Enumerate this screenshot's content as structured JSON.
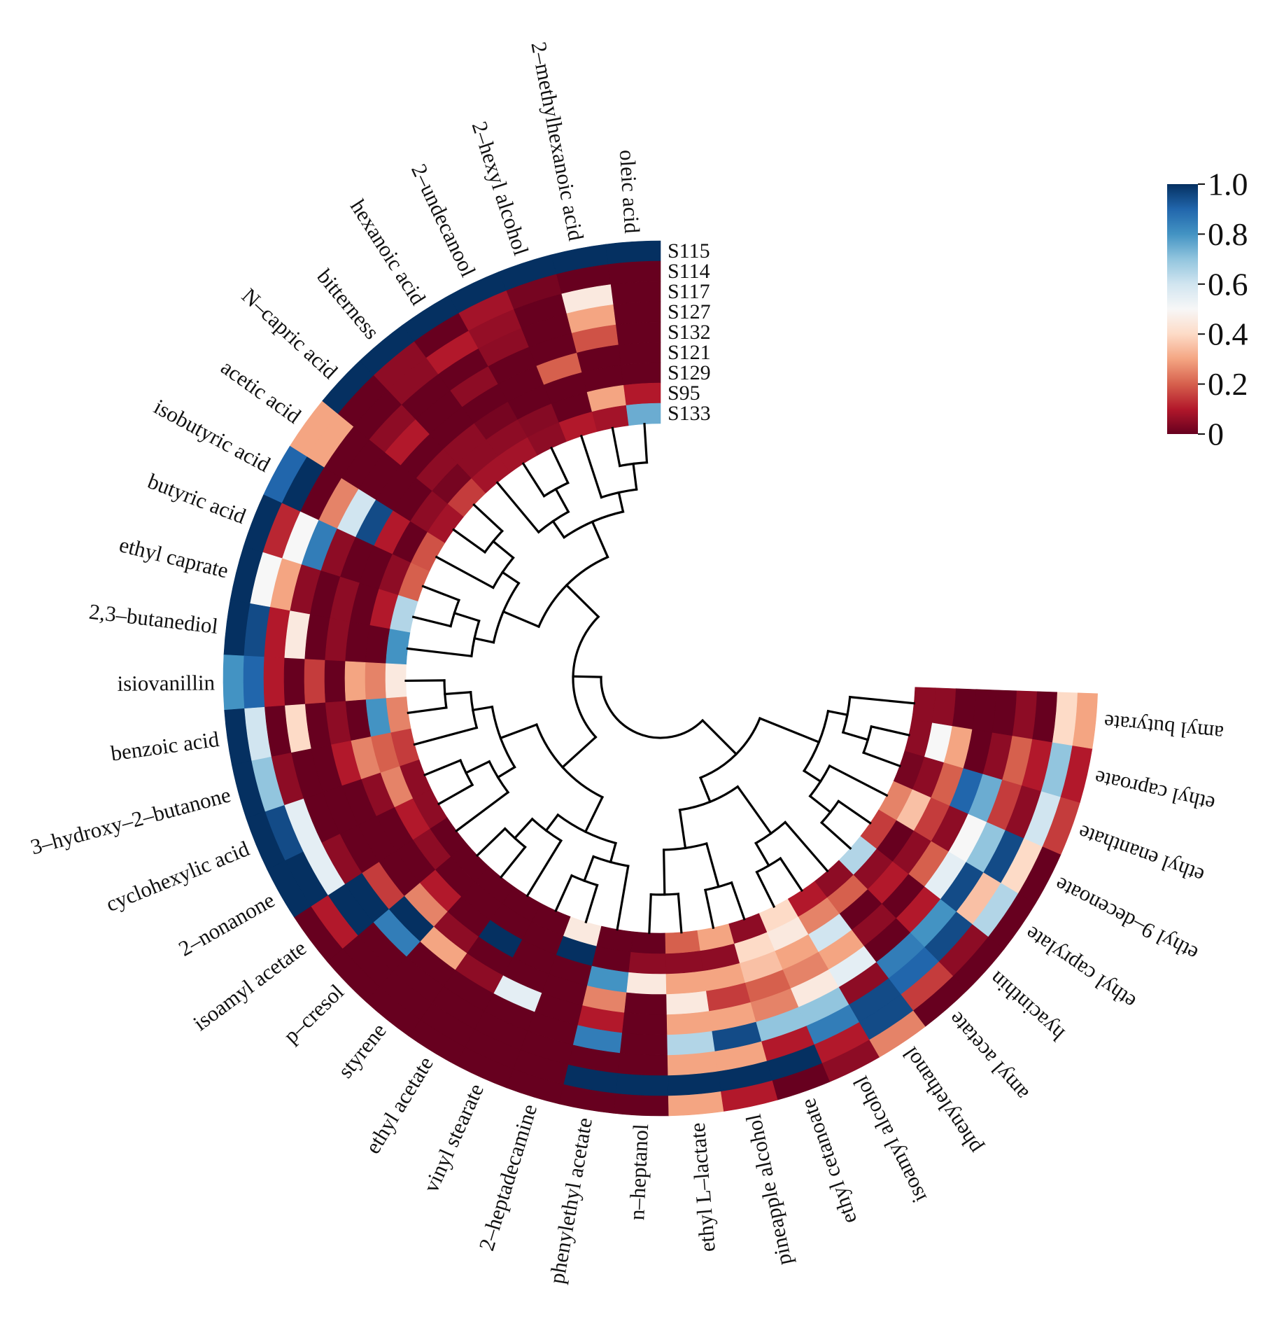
{
  "chart_data": {
    "type": "heatmap",
    "layout": "circular",
    "samples": [
      "S115",
      "S114",
      "S117",
      "S127",
      "S132",
      "S121",
      "S129",
      "S95",
      "S133"
    ],
    "features": [
      "oleic acid",
      "2–methylhexanoic acid",
      "2–hexyl alcohol",
      "2–undecanool",
      "hexanoic acid",
      "bitterness",
      "N–capric acid",
      "acetic acid",
      "isobutyric acid",
      "butyric acid",
      "ethyl caprate",
      "2,3–butanediol",
      "isiovanillin",
      "benzoic acid",
      "3–hydroxy–2–butanone",
      "cyclohexylic acid",
      "2–nonanone",
      "isoamyl acetate",
      "p–cresol",
      "styrene",
      "ethyl acetate",
      "vinyl stearate",
      "2–heptadecamine",
      "phenylethyl acetate",
      "n–heptanol",
      "ethyl L–lactate",
      "pineapple alcohol",
      "ethyl cetanoate",
      "isoamyl alcohol",
      "phenylethanol",
      "amyl acetate",
      "hyacinthin",
      "ethyl caprylate",
      "ethyl 9–decenoate",
      "ethyl enanthate",
      "ethyl caproate",
      "amyl butyrate"
    ],
    "values": [
      [
        1,
        0,
        0,
        0,
        0,
        0,
        0,
        0.1,
        0.75
      ],
      [
        1,
        0,
        0.45,
        0.3,
        0.18,
        0,
        0,
        0.3,
        0.08
      ],
      [
        1,
        0.02,
        0,
        0,
        0,
        0.2,
        0,
        0,
        0.1
      ],
      [
        1,
        0.08,
        0.06,
        0.05,
        0,
        0,
        0,
        0.04,
        0.05
      ],
      [
        1,
        0,
        0.1,
        0,
        0.05,
        0,
        0.02,
        0.05,
        0.08
      ],
      [
        1,
        0.05,
        0.05,
        0,
        0,
        0,
        0.05,
        0.05,
        0.08
      ],
      [
        1,
        0,
        0,
        0.05,
        0.1,
        0,
        0.05,
        0.02,
        0.15
      ],
      [
        0.3,
        0.3,
        0,
        0,
        0,
        0,
        0,
        0.05,
        0.08
      ],
      [
        0.9,
        1,
        0,
        0.25,
        0.6,
        0.95,
        0.1,
        0,
        0.18
      ],
      [
        1,
        0.12,
        0.5,
        0.85,
        0.05,
        0,
        0,
        0.05,
        0.2
      ],
      [
        1,
        0.5,
        0.3,
        0.05,
        0,
        0.05,
        0,
        0.1,
        0.65
      ],
      [
        1,
        0.95,
        0.1,
        0.45,
        0,
        0.05,
        0,
        0,
        0.8
      ],
      [
        0.8,
        0.9,
        0.1,
        0,
        0.15,
        0,
        0.3,
        0.25,
        0.45
      ],
      [
        1,
        0.6,
        0,
        0.4,
        0,
        0.05,
        0,
        0.8,
        0.25
      ],
      [
        1,
        0.7,
        0.05,
        0,
        0,
        0.1,
        0.25,
        0.2,
        0.15
      ],
      [
        1,
        0.95,
        0.55,
        0,
        0,
        0,
        0.05,
        0.25,
        0.05
      ],
      [
        1,
        1,
        0.55,
        0.05,
        0,
        0,
        0,
        0.1,
        0.05
      ],
      [
        0,
        0.1,
        1,
        1,
        0.15,
        0,
        0,
        0.05,
        0
      ],
      [
        0,
        0,
        0,
        0.85,
        1,
        0.25,
        0.1,
        0,
        0
      ],
      [
        0,
        0,
        0,
        0,
        0.3,
        0.05,
        0,
        0,
        0
      ],
      [
        0,
        0,
        0,
        0,
        0.05,
        0,
        1,
        0,
        0
      ],
      [
        0,
        0,
        0,
        0,
        0.55,
        0,
        0,
        0,
        0
      ],
      [
        0,
        0,
        0,
        0,
        0,
        0,
        0,
        1,
        0.45
      ],
      [
        0,
        1,
        0,
        0.85,
        0.1,
        0.25,
        0.8,
        0,
        0
      ],
      [
        0,
        1,
        0,
        0,
        0,
        0,
        0.45,
        0.05,
        0
      ],
      [
        0.3,
        1,
        0.3,
        0.65,
        0.3,
        0.45,
        0.3,
        0.05,
        0.2
      ],
      [
        0.1,
        1,
        0.3,
        0.95,
        0.3,
        0.15,
        0.3,
        0.05,
        0.3
      ],
      [
        0,
        1,
        0.1,
        0.7,
        0.25,
        0.2,
        0.35,
        0.4,
        0.05
      ],
      [
        0.05,
        0.1,
        0.85,
        0.7,
        0.45,
        0.25,
        0.3,
        0.45,
        0.4
      ],
      [
        0.25,
        0.95,
        0.95,
        0.05,
        0.55,
        0.3,
        0.6,
        0.25,
        0.1
      ],
      [
        0,
        0.15,
        0.9,
        0.85,
        0,
        0.05,
        0,
        0.2,
        0.05
      ],
      [
        0,
        0.05,
        0.95,
        0.8,
        0.1,
        0,
        0.1,
        0.05,
        0.65
      ],
      [
        0,
        0.65,
        0.35,
        0.95,
        0.55,
        0.2,
        0.05,
        0,
        0.15
      ],
      [
        0,
        0.4,
        0.95,
        0.7,
        0.5,
        0.05,
        0.15,
        0.35,
        0.25
      ],
      [
        0.15,
        0.6,
        0.05,
        0.15,
        0.75,
        0.9,
        0.2,
        0.05,
        0.02
      ],
      [
        0.1,
        0.7,
        0.1,
        0.2,
        0.05,
        0,
        0.3,
        0.5,
        0.05
      ],
      [
        0.3,
        0.4,
        0,
        0.05,
        0,
        0,
        0,
        0.05,
        0.05
      ]
    ],
    "colorbar": {
      "ticks": [
        "0",
        "0.2",
        "0.4",
        "0.6",
        "0.8",
        "1.0"
      ],
      "range": [
        0,
        1
      ],
      "colormap": "RdBu",
      "colors": [
        "#67001f",
        "#b2182b",
        "#d6604d",
        "#f4a582",
        "#fddbc7",
        "#f7f7f7",
        "#d1e5f0",
        "#92c5de",
        "#4393c3",
        "#2166ac",
        "#053061"
      ]
    }
  }
}
